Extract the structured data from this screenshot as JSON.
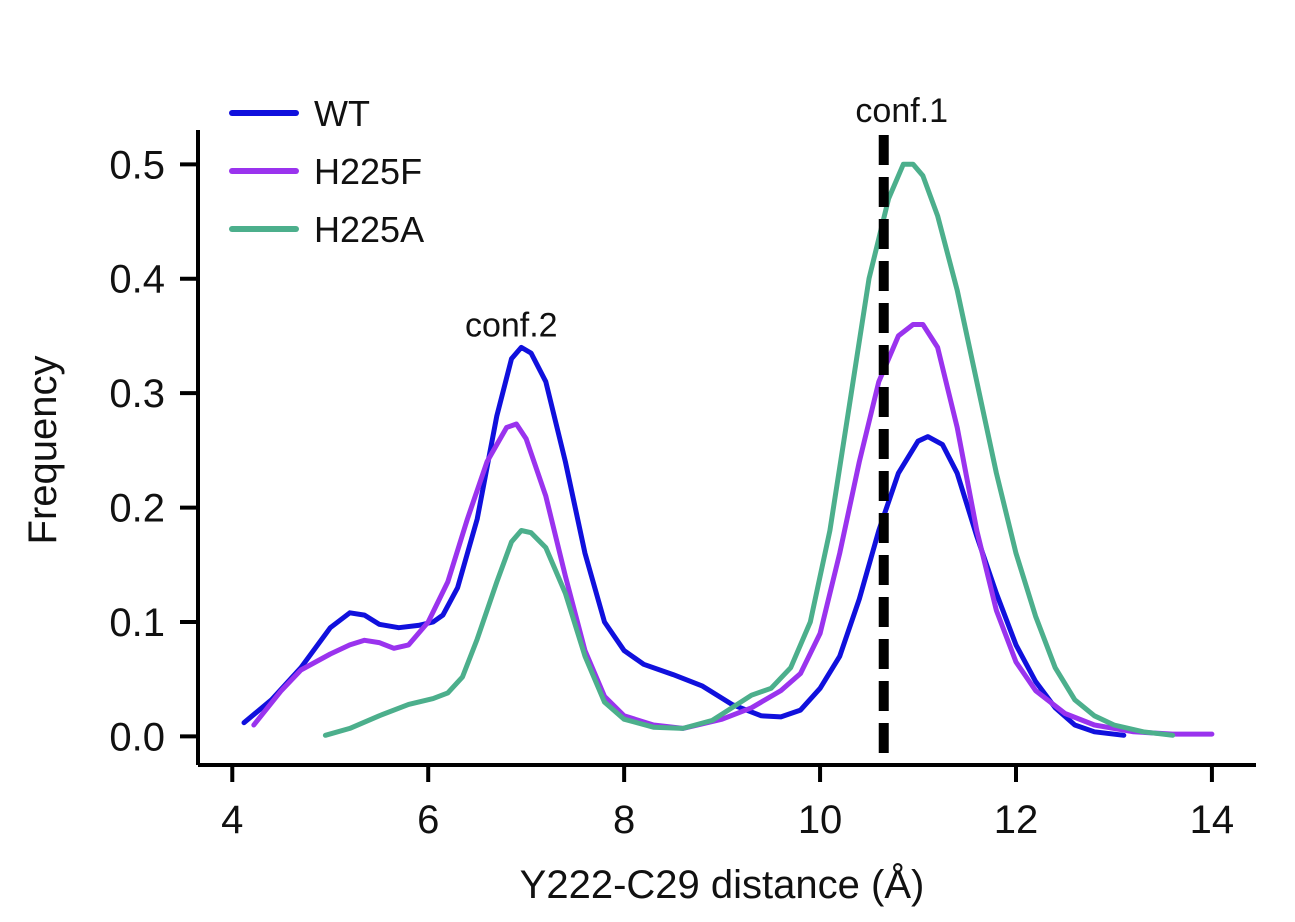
{
  "chart_data": {
    "type": "line",
    "title": "",
    "xlabel": "Y222-C29 distance (Å)",
    "ylabel": "Frequency",
    "xlim": [
      3.65,
      14.45
    ],
    "ylim": [
      -0.025,
      0.53
    ],
    "x_ticks": [
      4,
      6,
      8,
      10,
      12,
      14
    ],
    "x_tick_labels": [
      "4",
      "6",
      "8",
      "10",
      "12",
      "14"
    ],
    "y_ticks": [
      0.0,
      0.1,
      0.2,
      0.3,
      0.4,
      0.5
    ],
    "y_tick_labels": [
      "0.0",
      "0.1",
      "0.2",
      "0.3",
      "0.4",
      "0.5"
    ],
    "grid": false,
    "legend_position": "top-left",
    "series": [
      {
        "name": "WT",
        "color": "#1010dd",
        "points": [
          [
            4.12,
            0.012
          ],
          [
            4.4,
            0.032
          ],
          [
            4.7,
            0.06
          ],
          [
            5.0,
            0.095
          ],
          [
            5.2,
            0.108
          ],
          [
            5.35,
            0.106
          ],
          [
            5.5,
            0.098
          ],
          [
            5.7,
            0.095
          ],
          [
            5.9,
            0.097
          ],
          [
            6.05,
            0.1
          ],
          [
            6.15,
            0.106
          ],
          [
            6.3,
            0.13
          ],
          [
            6.5,
            0.19
          ],
          [
            6.7,
            0.28
          ],
          [
            6.85,
            0.33
          ],
          [
            6.95,
            0.34
          ],
          [
            7.05,
            0.335
          ],
          [
            7.2,
            0.31
          ],
          [
            7.4,
            0.24
          ],
          [
            7.6,
            0.16
          ],
          [
            7.8,
            0.1
          ],
          [
            8.0,
            0.075
          ],
          [
            8.2,
            0.063
          ],
          [
            8.5,
            0.054
          ],
          [
            8.8,
            0.044
          ],
          [
            9.1,
            0.028
          ],
          [
            9.4,
            0.018
          ],
          [
            9.6,
            0.017
          ],
          [
            9.8,
            0.023
          ],
          [
            10.0,
            0.042
          ],
          [
            10.2,
            0.07
          ],
          [
            10.4,
            0.12
          ],
          [
            10.6,
            0.18
          ],
          [
            10.8,
            0.23
          ],
          [
            11.0,
            0.258
          ],
          [
            11.1,
            0.262
          ],
          [
            11.25,
            0.255
          ],
          [
            11.4,
            0.23
          ],
          [
            11.6,
            0.175
          ],
          [
            11.8,
            0.125
          ],
          [
            12.0,
            0.08
          ],
          [
            12.2,
            0.048
          ],
          [
            12.4,
            0.025
          ],
          [
            12.6,
            0.01
          ],
          [
            12.8,
            0.004
          ],
          [
            13.1,
            0.001
          ]
        ]
      },
      {
        "name": "H225F",
        "color": "#9a33ee",
        "points": [
          [
            4.22,
            0.01
          ],
          [
            4.5,
            0.04
          ],
          [
            4.7,
            0.058
          ],
          [
            5.0,
            0.072
          ],
          [
            5.2,
            0.08
          ],
          [
            5.35,
            0.084
          ],
          [
            5.5,
            0.082
          ],
          [
            5.65,
            0.077
          ],
          [
            5.8,
            0.08
          ],
          [
            6.0,
            0.1
          ],
          [
            6.2,
            0.135
          ],
          [
            6.4,
            0.19
          ],
          [
            6.6,
            0.24
          ],
          [
            6.8,
            0.27
          ],
          [
            6.9,
            0.273
          ],
          [
            7.0,
            0.26
          ],
          [
            7.2,
            0.21
          ],
          [
            7.4,
            0.14
          ],
          [
            7.6,
            0.075
          ],
          [
            7.8,
            0.035
          ],
          [
            8.0,
            0.018
          ],
          [
            8.3,
            0.01
          ],
          [
            8.6,
            0.007
          ],
          [
            9.0,
            0.015
          ],
          [
            9.3,
            0.025
          ],
          [
            9.6,
            0.04
          ],
          [
            9.8,
            0.055
          ],
          [
            10.0,
            0.09
          ],
          [
            10.2,
            0.16
          ],
          [
            10.4,
            0.24
          ],
          [
            10.6,
            0.31
          ],
          [
            10.8,
            0.35
          ],
          [
            10.95,
            0.36
          ],
          [
            11.05,
            0.36
          ],
          [
            11.2,
            0.34
          ],
          [
            11.4,
            0.27
          ],
          [
            11.6,
            0.18
          ],
          [
            11.8,
            0.11
          ],
          [
            12.0,
            0.065
          ],
          [
            12.2,
            0.04
          ],
          [
            12.5,
            0.02
          ],
          [
            12.8,
            0.01
          ],
          [
            13.2,
            0.004
          ],
          [
            13.6,
            0.002
          ],
          [
            14.0,
            0.002
          ]
        ]
      },
      {
        "name": "H225A",
        "color": "#4caf8c",
        "points": [
          [
            4.95,
            0.001
          ],
          [
            5.2,
            0.007
          ],
          [
            5.5,
            0.018
          ],
          [
            5.8,
            0.028
          ],
          [
            6.05,
            0.033
          ],
          [
            6.2,
            0.038
          ],
          [
            6.35,
            0.052
          ],
          [
            6.5,
            0.085
          ],
          [
            6.7,
            0.135
          ],
          [
            6.85,
            0.17
          ],
          [
            6.95,
            0.18
          ],
          [
            7.05,
            0.178
          ],
          [
            7.2,
            0.165
          ],
          [
            7.4,
            0.125
          ],
          [
            7.6,
            0.07
          ],
          [
            7.8,
            0.03
          ],
          [
            8.0,
            0.015
          ],
          [
            8.3,
            0.008
          ],
          [
            8.6,
            0.007
          ],
          [
            8.9,
            0.014
          ],
          [
            9.1,
            0.025
          ],
          [
            9.3,
            0.036
          ],
          [
            9.5,
            0.042
          ],
          [
            9.7,
            0.06
          ],
          [
            9.9,
            0.1
          ],
          [
            10.1,
            0.18
          ],
          [
            10.3,
            0.29
          ],
          [
            10.5,
            0.4
          ],
          [
            10.7,
            0.47
          ],
          [
            10.85,
            0.5
          ],
          [
            10.95,
            0.5
          ],
          [
            11.05,
            0.49
          ],
          [
            11.2,
            0.455
          ],
          [
            11.4,
            0.39
          ],
          [
            11.6,
            0.31
          ],
          [
            11.8,
            0.23
          ],
          [
            12.0,
            0.16
          ],
          [
            12.2,
            0.105
          ],
          [
            12.4,
            0.06
          ],
          [
            12.6,
            0.032
          ],
          [
            12.8,
            0.018
          ],
          [
            13.0,
            0.01
          ],
          [
            13.3,
            0.004
          ],
          [
            13.6,
            0.001
          ]
        ]
      }
    ],
    "reference_lines": [
      {
        "axis": "x",
        "value": 10.65,
        "style": "dashed",
        "label": "conf.1"
      }
    ],
    "annotations": [
      {
        "text": "conf.2",
        "x": 6.95,
        "y": 0.36
      }
    ]
  }
}
